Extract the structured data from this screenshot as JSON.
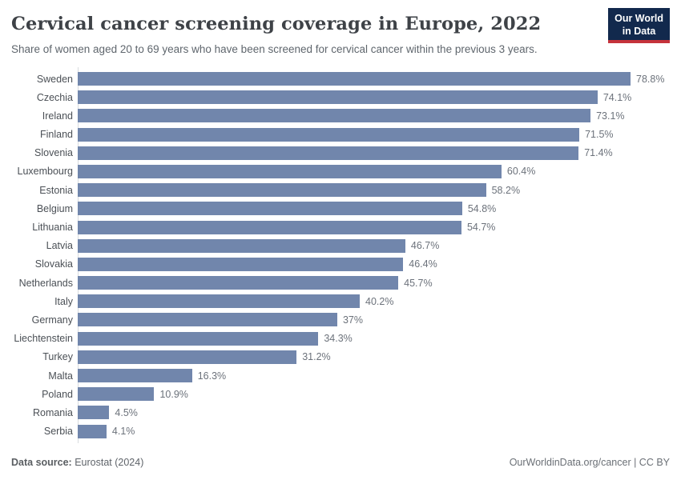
{
  "header": {
    "title": "Cervical cancer screening coverage in Europe, 2022",
    "subtitle": "Share of women aged 20 to 69 years who have been screened for cervical cancer within the previous 3 years.",
    "logo_line1": "Our World",
    "logo_line2": "in Data"
  },
  "footer": {
    "source_label": "Data source:",
    "source_value": "Eurostat (2024)",
    "attribution": "OurWorldinData.org/cancer | CC BY"
  },
  "colors": {
    "bar": "#7186ac",
    "logo_navy": "#12294d",
    "logo_red": "#c5323b"
  },
  "chart_data": {
    "type": "bar",
    "orientation": "horizontal",
    "title": "Cervical cancer screening coverage in Europe, 2022",
    "xlabel": "",
    "ylabel": "",
    "xlim": [
      0,
      80
    ],
    "unit": "%",
    "grid": false,
    "legend": false,
    "categories": [
      "Sweden",
      "Czechia",
      "Ireland",
      "Finland",
      "Slovenia",
      "Luxembourg",
      "Estonia",
      "Belgium",
      "Lithuania",
      "Latvia",
      "Slovakia",
      "Netherlands",
      "Italy",
      "Germany",
      "Liechtenstein",
      "Turkey",
      "Malta",
      "Poland",
      "Romania",
      "Serbia"
    ],
    "values": [
      78.8,
      74.1,
      73.1,
      71.5,
      71.4,
      60.4,
      58.2,
      54.8,
      54.7,
      46.7,
      46.4,
      45.7,
      40.2,
      37,
      34.3,
      31.2,
      16.3,
      10.9,
      4.5,
      4.1
    ],
    "value_labels": [
      "78.8%",
      "74.1%",
      "73.1%",
      "71.5%",
      "71.4%",
      "60.4%",
      "58.2%",
      "54.8%",
      "54.7%",
      "46.7%",
      "46.4%",
      "45.7%",
      "40.2%",
      "37%",
      "34.3%",
      "31.2%",
      "16.3%",
      "10.9%",
      "4.5%",
      "4.1%"
    ]
  }
}
